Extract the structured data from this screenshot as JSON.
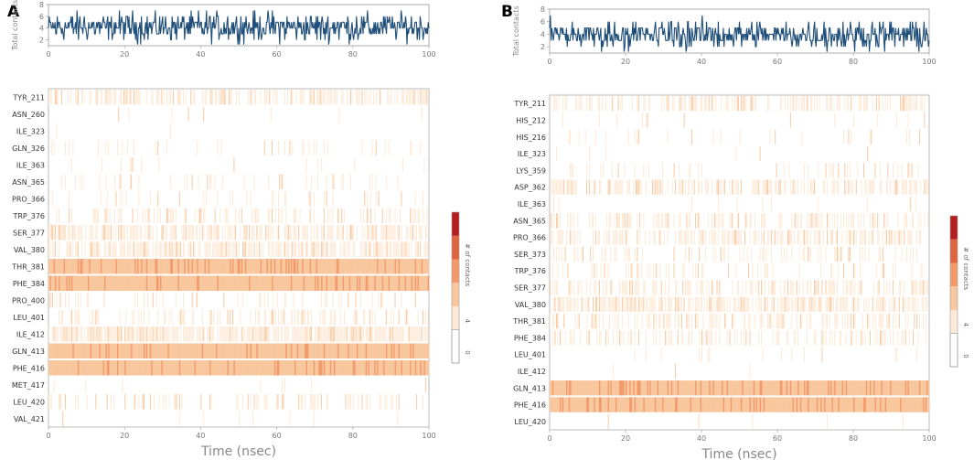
{
  "panels": [
    {
      "label": "A",
      "total_contacts": {
        "ylabel": "Total contacts",
        "yticks": [
          "2",
          "4",
          "6",
          "8"
        ],
        "ylim": [
          1,
          8
        ],
        "xticks": [
          "0",
          "20",
          "40",
          "60",
          "80",
          "100"
        ],
        "xlim": [
          0,
          100
        ],
        "mean": 4.2,
        "spread": 1.1,
        "color": "#1f4e79"
      },
      "heatmap": {
        "xlabel": "Time (nsec)",
        "xticks": [
          "0",
          "20",
          "40",
          "60",
          "80",
          "100"
        ],
        "colorbar_label": "# of contacts",
        "colorbar_ticks": [
          "0",
          "4"
        ],
        "residues": [
          "TYR_211",
          "ASN_260",
          "ILE_323",
          "GLN_326",
          "ILE_363",
          "ASN_365",
          "PRO_366",
          "TRP_376",
          "SER_377",
          "VAL_380",
          "THR_381",
          "PHE_384",
          "PRO_400",
          "LEU_401",
          "ILE_412",
          "GLN_413",
          "PHE_416",
          "MET_417",
          "LEU_420",
          "VAL_421"
        ],
        "occupancy": [
          0.55,
          0.02,
          0.01,
          0.12,
          0.05,
          0.15,
          0.12,
          0.28,
          0.62,
          0.7,
          1.0,
          1.0,
          0.15,
          0.3,
          0.85,
          1.0,
          1.0,
          0.04,
          0.25,
          0.02
        ]
      }
    },
    {
      "label": "B",
      "total_contacts": {
        "ylabel": "Total contacts",
        "yticks": [
          "2",
          "4",
          "6",
          "8"
        ],
        "ylim": [
          1,
          8
        ],
        "xticks": [
          "0",
          "20",
          "40",
          "60",
          "80",
          "100"
        ],
        "xlim": [
          0,
          100
        ],
        "mean": 3.9,
        "spread": 1.0,
        "color": "#1f4e79"
      },
      "heatmap": {
        "xlabel": "Time (nsec)",
        "xticks": [
          "0",
          "20",
          "40",
          "60",
          "80",
          "100"
        ],
        "colorbar_label": "# of contacts",
        "colorbar_ticks": [
          "0",
          "4"
        ],
        "residues": [
          "TYR_211",
          "HIS_212",
          "HIS_216",
          "ILE_323",
          "LYS_359",
          "ASP_362",
          "ILE_363",
          "ASN_365",
          "PRO_366",
          "SER_373",
          "TRP_376",
          "SER_377",
          "VAL_380",
          "THR_381",
          "PHE_384",
          "LEU_401",
          "ILE_412",
          "GLN_413",
          "PHE_416",
          "LEU_420"
        ],
        "occupancy": [
          0.45,
          0.05,
          0.06,
          0.03,
          0.15,
          0.55,
          0.02,
          0.4,
          0.5,
          0.25,
          0.2,
          0.45,
          0.7,
          0.35,
          0.3,
          0.03,
          0.02,
          1.0,
          1.0,
          0.02
        ]
      }
    }
  ],
  "colormap": [
    "#fde9d5",
    "#f8c79e",
    "#f39a6b",
    "#e06440",
    "#b51e1e"
  ]
}
